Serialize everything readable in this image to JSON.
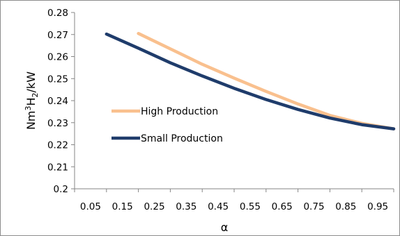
{
  "chart_data": {
    "type": "line",
    "title": "",
    "xlabel": "α",
    "ylabel": "Nm³H₂/kW",
    "ylabel_parts": [
      "Nm",
      "3",
      "H",
      "2",
      "/kW"
    ],
    "x_ticks": [
      "0.05",
      "0.15",
      "0.25",
      "0.35",
      "0.45",
      "0.55",
      "0.65",
      "0.75",
      "0.85",
      "0.95"
    ],
    "y_ticks": [
      "0.2",
      "0.21",
      "0.22",
      "0.23",
      "0.24",
      "0.25",
      "0.26",
      "0.27",
      "0.28"
    ],
    "xlim": [
      0.0,
      1.0
    ],
    "ylim": [
      0.2,
      0.28
    ],
    "grid": false,
    "legend_position": "left",
    "series": [
      {
        "name": "High Production",
        "color": "#F9C08E",
        "x": [
          0.2,
          0.3,
          0.4,
          0.5,
          0.6,
          0.7,
          0.8,
          0.9,
          1.0
        ],
        "y": [
          0.2705,
          0.2635,
          0.2565,
          0.2502,
          0.2442,
          0.2385,
          0.2333,
          0.2297,
          0.2272
        ]
      },
      {
        "name": "Small Production",
        "color": "#1F3C6B",
        "x": [
          0.1,
          0.2,
          0.3,
          0.4,
          0.5,
          0.6,
          0.7,
          0.8,
          0.9,
          1.0
        ],
        "y": [
          0.2702,
          0.2638,
          0.2572,
          0.2512,
          0.2456,
          0.2405,
          0.236,
          0.2321,
          0.2291,
          0.2272
        ]
      }
    ]
  }
}
